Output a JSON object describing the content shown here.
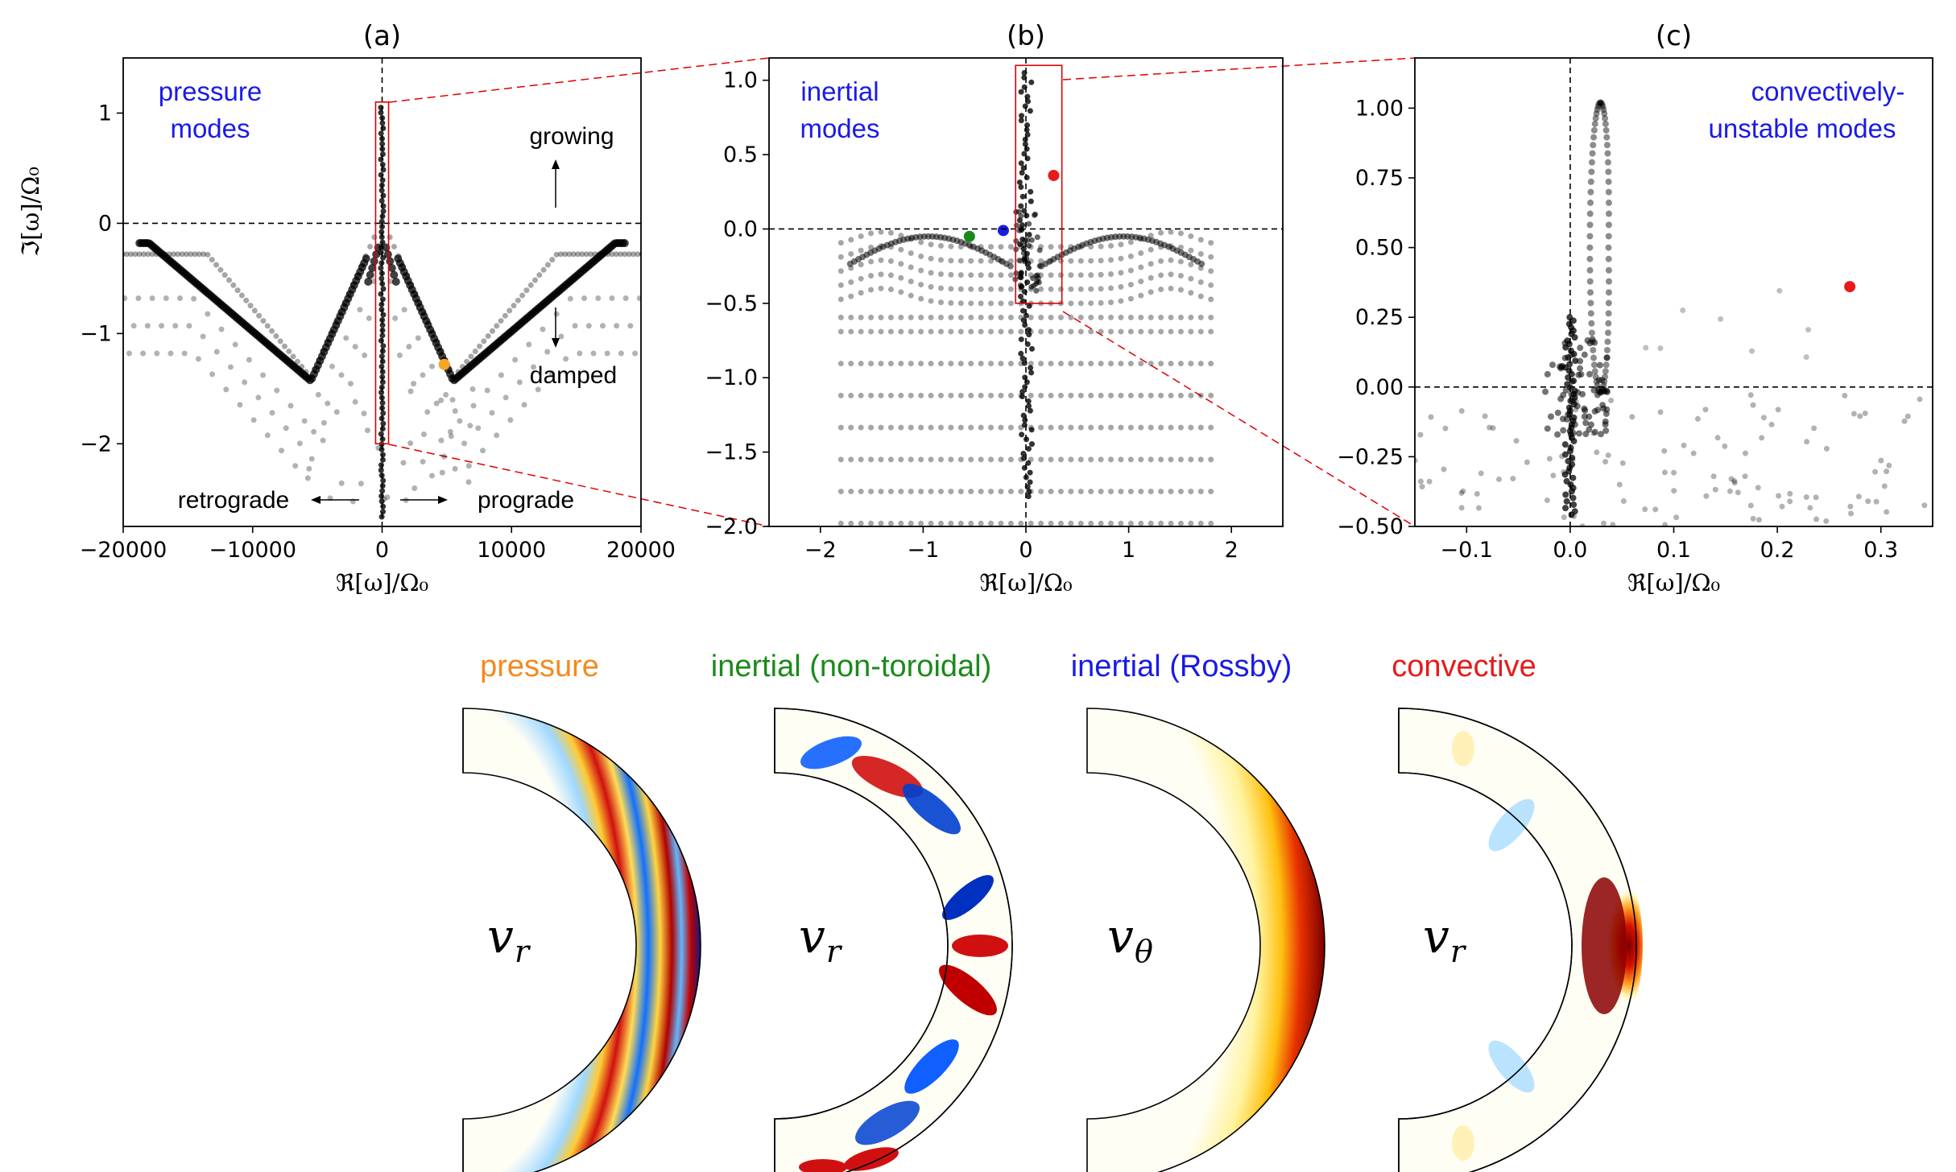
{
  "chart_data": [
    {
      "id": "a",
      "type": "scatter",
      "title": "(a)",
      "xlabel": "ℜ[ω]/Ω₀",
      "ylabel": "ℑ[ω]/Ω₀",
      "xlim": [
        -20000,
        20000
      ],
      "ylim": [
        -2.75,
        1.5
      ],
      "xticks": [
        -20000,
        -10000,
        0,
        10000,
        20000
      ],
      "xtick_labels": [
        "−20000",
        "−10000",
        "0",
        "10000",
        "20000"
      ],
      "yticks": [
        1,
        0,
        -1,
        -2
      ],
      "ytick_labels": [
        "1",
        "0",
        "−1",
        "−2"
      ],
      "mode_label": [
        "pressure",
        "modes"
      ],
      "annotations": {
        "growing": "growing",
        "damped": "damped",
        "retrograde": "retrograde",
        "prograde": "prograde"
      },
      "highlight_points": [
        {
          "x": 4800,
          "y": -1.28,
          "color": "#f5a623",
          "mode": "pressure"
        }
      ],
      "zoom_box": {
        "x": [
          -500,
          500
        ],
        "y": [
          -2.0,
          1.1
        ]
      }
    },
    {
      "id": "b",
      "type": "scatter",
      "title": "(b)",
      "xlabel": "ℜ[ω]/Ω₀",
      "ylabel": "",
      "xlim": [
        -2.5,
        2.5
      ],
      "ylim": [
        -2.0,
        1.15
      ],
      "xticks": [
        -2,
        -1,
        0,
        1,
        2
      ],
      "xtick_labels": [
        "−2",
        "−1",
        "0",
        "1",
        "2"
      ],
      "yticks": [
        1.0,
        0.5,
        0.0,
        -0.5,
        -1.0,
        -1.5,
        -2.0
      ],
      "ytick_labels": [
        "1.0",
        "0.5",
        "0.0",
        "−0.5",
        "−1.0",
        "−1.5",
        "−2.0"
      ],
      "mode_label": [
        "inertial",
        "modes"
      ],
      "highlight_points": [
        {
          "x": -0.55,
          "y": -0.05,
          "color": "#1a8a1a",
          "mode": "inertial (non-toroidal)"
        },
        {
          "x": -0.22,
          "y": -0.01,
          "color": "#1a1ae6",
          "mode": "inertial (Rossby)"
        },
        {
          "x": 0.27,
          "y": 0.36,
          "color": "#e61a1a",
          "mode": "convective"
        }
      ],
      "zoom_box": {
        "x": [
          -0.1,
          0.35
        ],
        "y": [
          -0.5,
          1.1
        ]
      }
    },
    {
      "id": "c",
      "type": "scatter",
      "title": "(c)",
      "xlabel": "ℜ[ω]/Ω₀",
      "ylabel": "",
      "xlim": [
        -0.15,
        0.35
      ],
      "ylim": [
        -0.5,
        1.18
      ],
      "xticks": [
        -0.1,
        0.0,
        0.1,
        0.2,
        0.3
      ],
      "xtick_labels": [
        "−0.1",
        "0.0",
        "0.1",
        "0.2",
        "0.3"
      ],
      "yticks": [
        1.0,
        0.75,
        0.5,
        0.25,
        0.0,
        -0.25,
        -0.5
      ],
      "ytick_labels": [
        "1.00",
        "0.75",
        "0.50",
        "0.25",
        "0.00",
        "−0.25",
        "−0.50"
      ],
      "mode_label": [
        "convectively-",
        "unstable modes"
      ],
      "highlight_points": [
        {
          "x": 0.27,
          "y": 0.36,
          "color": "#e61a1a",
          "mode": "convective"
        }
      ]
    }
  ],
  "bottom_panels": [
    {
      "label": "pressure",
      "color": "#f5891e",
      "var": "v",
      "sub": "r",
      "pattern": "pressure"
    },
    {
      "label": "inertial (non-toroidal)",
      "color": "#1a8a1a",
      "var": "v",
      "sub": "r",
      "pattern": "inertial"
    },
    {
      "label": "inertial (Rossby)",
      "color": "#1a1ae6",
      "var": "v",
      "sub": "θ",
      "pattern": "rossby"
    },
    {
      "label": "convective",
      "color": "#e61a1a",
      "var": "v",
      "sub": "r",
      "pattern": "convective"
    }
  ]
}
